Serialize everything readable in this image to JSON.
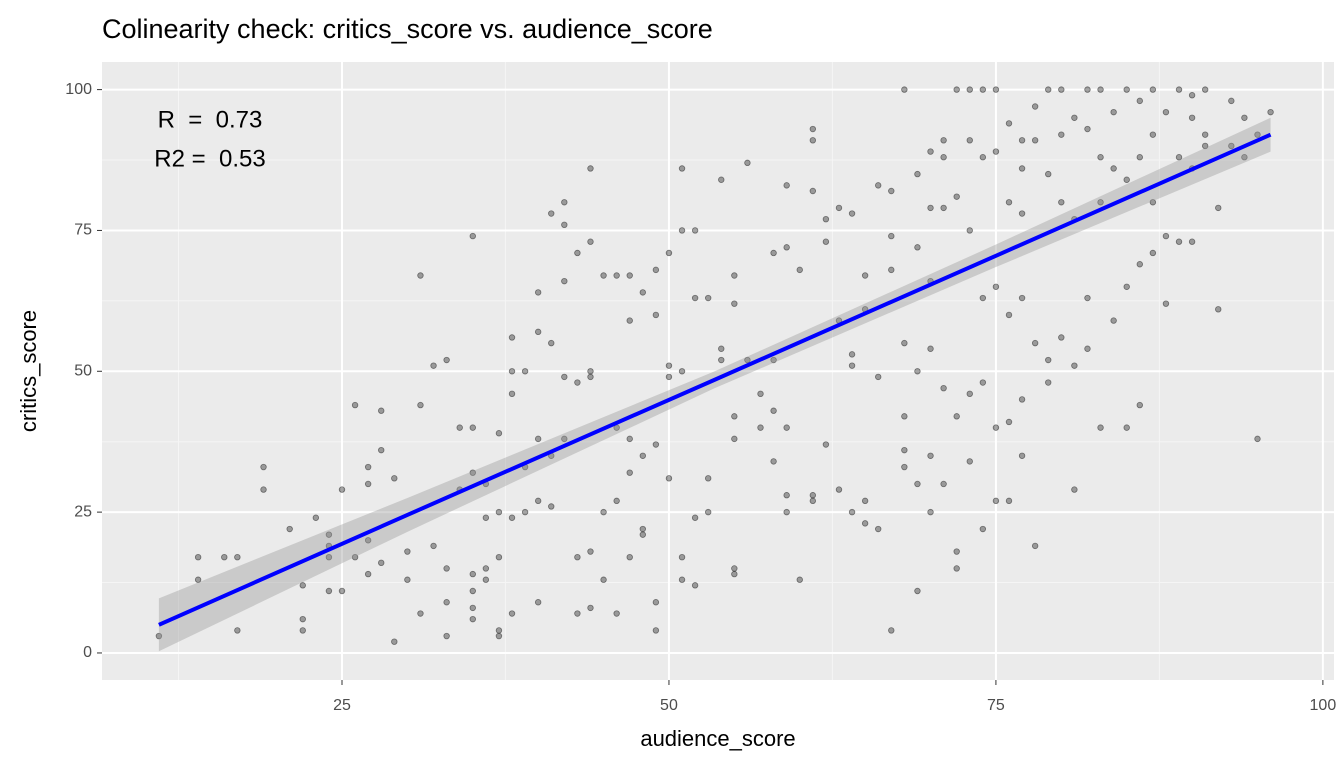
{
  "chart_data": {
    "type": "scatter",
    "title": "Colinearity check: critics_score vs. audience_score",
    "x_label": "audience_score",
    "y_label": "critics_score",
    "annotations": [
      "R  =  0.73",
      "R2 =  0.53"
    ],
    "xlim": [
      6.65,
      100.85
    ],
    "ylim": [
      -4.8,
      104.9
    ],
    "xticks": [
      25,
      50,
      75,
      100
    ],
    "yticks": [
      0,
      25,
      50,
      75,
      100
    ],
    "grid": true,
    "color": "#000000",
    "x": [
      11,
      14,
      14,
      16,
      17,
      17,
      19,
      19,
      21,
      22,
      22,
      22,
      23,
      24,
      24,
      24,
      24,
      25,
      25,
      26,
      26,
      27,
      27,
      27,
      27,
      28,
      28,
      28,
      29,
      29,
      30,
      30,
      31,
      31,
      31,
      32,
      32,
      33,
      33,
      33,
      33,
      34,
      34,
      35,
      35,
      35,
      35,
      35,
      35,
      35,
      36,
      36,
      36,
      36,
      37,
      37,
      37,
      37,
      37,
      38,
      38,
      38,
      38,
      38,
      39,
      39,
      39,
      40,
      40,
      40,
      40,
      40,
      41,
      41,
      41,
      41,
      42,
      42,
      42,
      42,
      42,
      43,
      43,
      43,
      43,
      44,
      44,
      44,
      44,
      44,
      44,
      45,
      45,
      45,
      46,
      46,
      46,
      46,
      47,
      47,
      47,
      47,
      47,
      48,
      48,
      48,
      48,
      49,
      49,
      49,
      49,
      49,
      50,
      50,
      50,
      50,
      51,
      51,
      51,
      51,
      51,
      52,
      52,
      52,
      52,
      53,
      53,
      53,
      54,
      54,
      54,
      55,
      55,
      55,
      55,
      55,
      55,
      56,
      56,
      57,
      57,
      58,
      58,
      58,
      58,
      59,
      59,
      59,
      59,
      59,
      60,
      60,
      61,
      61,
      61,
      61,
      61,
      62,
      62,
      62,
      63,
      63,
      63,
      64,
      64,
      64,
      64,
      65,
      65,
      65,
      65,
      66,
      66,
      66,
      67,
      67,
      67,
      67,
      68,
      68,
      68,
      68,
      68,
      69,
      69,
      69,
      69,
      69,
      70,
      70,
      70,
      70,
      70,
      70,
      71,
      71,
      71,
      71,
      71,
      72,
      72,
      72,
      72,
      72,
      73,
      73,
      73,
      73,
      73,
      74,
      74,
      74,
      74,
      74,
      75,
      75,
      75,
      75,
      75,
      76,
      76,
      76,
      76,
      76,
      77,
      77,
      77,
      77,
      77,
      77,
      78,
      78,
      78,
      78,
      79,
      79,
      79,
      79,
      80,
      80,
      80,
      80,
      81,
      81,
      81,
      81,
      82,
      82,
      82,
      82,
      83,
      83,
      83,
      83,
      84,
      84,
      84,
      85,
      85,
      85,
      85,
      86,
      86,
      86,
      86,
      87,
      87,
      87,
      87,
      88,
      88,
      88,
      89,
      89,
      89,
      90,
      90,
      90,
      90,
      91,
      91,
      91,
      92,
      92,
      93,
      93,
      94,
      94,
      95,
      95,
      96
    ],
    "values": [
      3,
      13,
      17,
      17,
      4,
      17,
      33,
      29,
      22,
      12,
      6,
      4,
      24,
      21,
      19,
      17,
      11,
      29,
      11,
      44,
      17,
      33,
      30,
      20,
      14,
      43,
      36,
      16,
      31,
      2,
      18,
      13,
      67,
      44,
      7,
      51,
      19,
      52,
      15,
      9,
      3,
      40,
      29,
      74,
      40,
      32,
      14,
      11,
      8,
      6,
      15,
      13,
      24,
      30,
      39,
      25,
      17,
      4,
      3,
      56,
      50,
      46,
      24,
      7,
      50,
      33,
      25,
      57,
      64,
      38,
      27,
      9,
      78,
      55,
      35,
      26,
      80,
      76,
      66,
      49,
      38,
      71,
      48,
      17,
      7,
      86,
      73,
      50,
      49,
      18,
      8,
      67,
      25,
      13,
      67,
      40,
      27,
      7,
      67,
      59,
      38,
      32,
      17,
      64,
      35,
      22,
      21,
      68,
      60,
      37,
      9,
      4,
      71,
      51,
      49,
      31,
      86,
      75,
      50,
      17,
      13,
      75,
      63,
      24,
      12,
      63,
      31,
      25,
      84,
      54,
      52,
      67,
      62,
      42,
      38,
      15,
      14,
      87,
      52,
      46,
      40,
      71,
      52,
      43,
      34,
      83,
      72,
      40,
      28,
      25,
      68,
      13,
      93,
      91,
      82,
      28,
      27,
      77,
      73,
      37,
      79,
      59,
      29,
      78,
      53,
      51,
      25,
      67,
      61,
      27,
      23,
      83,
      49,
      22,
      82,
      74,
      68,
      4,
      100,
      55,
      42,
      36,
      33,
      85,
      72,
      50,
      30,
      11,
      89,
      79,
      66,
      54,
      35,
      25,
      91,
      88,
      79,
      47,
      30,
      100,
      81,
      42,
      18,
      15,
      100,
      91,
      75,
      46,
      34,
      100,
      88,
      63,
      48,
      22,
      100,
      89,
      65,
      40,
      27,
      94,
      80,
      60,
      41,
      27,
      91,
      86,
      78,
      63,
      45,
      35,
      97,
      91,
      55,
      19,
      100,
      85,
      52,
      48,
      100,
      92,
      80,
      56,
      95,
      77,
      51,
      29,
      100,
      93,
      63,
      54,
      100,
      88,
      80,
      40,
      96,
      86,
      59,
      100,
      84,
      65,
      40,
      98,
      88,
      69,
      44,
      100,
      92,
      80,
      71,
      96,
      74,
      62,
      100,
      88,
      73,
      99,
      95,
      86,
      73,
      100,
      92,
      90,
      79,
      61,
      98,
      90,
      95,
      88,
      38,
      92,
      96
    ],
    "fit": {
      "color": "#0000ff",
      "band_color": "#999999",
      "x": [
        11,
        30,
        53.5,
        75,
        96
      ],
      "values": [
        5,
        24.5,
        48.5,
        70.5,
        92
      ],
      "lower": [
        0.3,
        21.5,
        47,
        68.5,
        89
      ],
      "upper": [
        9.7,
        27.5,
        50,
        72.5,
        95
      ]
    }
  }
}
